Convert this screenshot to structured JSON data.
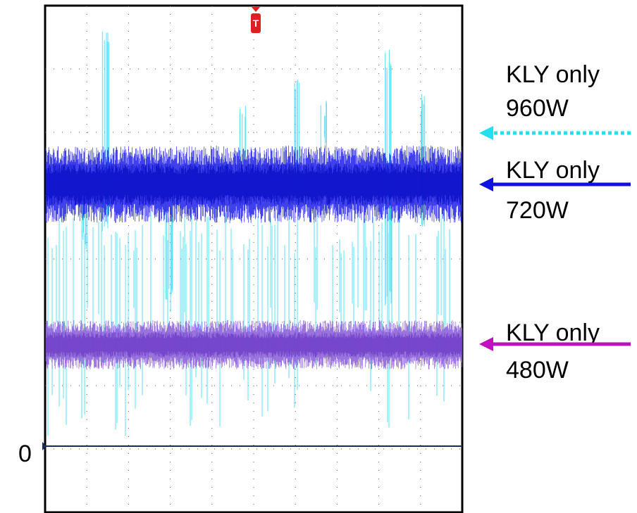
{
  "labels": [
    {
      "title": "KLY only",
      "power": "960W"
    },
    {
      "title": "KLY only",
      "power": "720W"
    },
    {
      "title": "KLY only",
      "power": "480W"
    }
  ],
  "zero_label": "0",
  "trigger_label": "T"
}
